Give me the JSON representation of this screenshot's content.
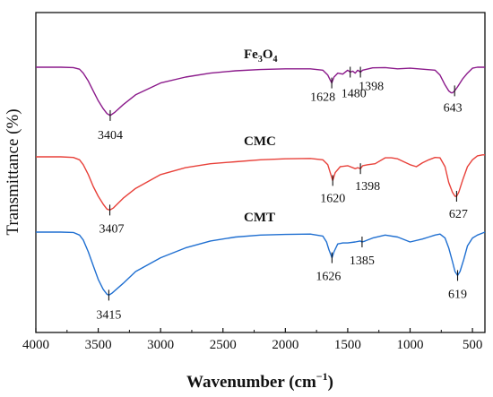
{
  "chart_data": {
    "type": "line",
    "xlabel": "Wavenumber (cm",
    "xlabel_sup": "−1",
    "xlabel_close": ")",
    "ylabel": "Transmittance (%)",
    "xlim": [
      4000,
      400
    ],
    "x_reversed": true,
    "x_ticks": [
      4000,
      3500,
      3000,
      2500,
      2000,
      1500,
      1000,
      500
    ],
    "x_tick_labels": [
      "4000",
      "3500",
      "3000",
      "2500",
      "2000",
      "1500",
      "1000",
      "500"
    ],
    "y_ticks_shown": false,
    "grid": false,
    "legend": "none",
    "series": [
      {
        "name": "Fe3O4",
        "name_main": "Fe",
        "name_sub1": "3",
        "name_mid": "O",
        "name_sub2": "4",
        "color": "#8b1a8b",
        "x": [
          4000,
          3800,
          3700,
          3650,
          3620,
          3580,
          3540,
          3500,
          3460,
          3430,
          3404,
          3370,
          3300,
          3200,
          3000,
          2800,
          2600,
          2400,
          2200,
          2000,
          1800,
          1700,
          1660,
          1640,
          1628,
          1610,
          1580,
          1540,
          1500,
          1480,
          1460,
          1440,
          1420,
          1398,
          1380,
          1300,
          1200,
          1100,
          1000,
          900,
          800,
          760,
          720,
          690,
          670,
          660,
          643,
          620,
          580,
          540,
          500,
          460,
          420,
          400
        ],
        "y": [
          0.0,
          0.0,
          -0.2,
          -1.0,
          -3,
          -7,
          -12,
          -17,
          -21,
          -23.5,
          -24.5,
          -23,
          -19,
          -14,
          -8,
          -5,
          -3,
          -1.8,
          -1.2,
          -0.8,
          -0.8,
          -1.5,
          -4,
          -6.5,
          -8,
          -5,
          -3,
          -3.5,
          -1.5,
          -2.5,
          -2,
          -3,
          -1.5,
          -2.5,
          -1.5,
          -0.3,
          -0.2,
          -0.8,
          -0.5,
          -1.0,
          -1.5,
          -4,
          -9,
          -12,
          -13,
          -13,
          -12,
          -10,
          -6,
          -3,
          -0.5,
          0.0,
          0.0,
          0.0
        ]
      },
      {
        "name": "CMC",
        "color": "#e8413a",
        "x": [
          4000,
          3800,
          3700,
          3650,
          3620,
          3580,
          3540,
          3500,
          3460,
          3430,
          3407,
          3380,
          3300,
          3200,
          3000,
          2800,
          2600,
          2400,
          2200,
          2000,
          1800,
          1700,
          1660,
          1640,
          1620,
          1600,
          1560,
          1500,
          1440,
          1420,
          1398,
          1380,
          1340,
          1280,
          1200,
          1150,
          1100,
          1050,
          1000,
          950,
          900,
          850,
          800,
          760,
          720,
          690,
          660,
          640,
          627,
          610,
          580,
          540,
          500,
          460,
          420,
          400
        ],
        "y": [
          0.0,
          0.0,
          -0.3,
          -1.5,
          -4,
          -9,
          -15,
          -20,
          -24,
          -26.5,
          -27,
          -26,
          -21,
          -16,
          -9,
          -5.5,
          -3.5,
          -2.5,
          -1.5,
          -1.0,
          -0.8,
          -1.5,
          -4,
          -8,
          -12,
          -8,
          -5,
          -4.5,
          -6,
          -5.5,
          -6,
          -4.5,
          -4,
          -3.5,
          -0.5,
          -0.5,
          -1.0,
          -2.5,
          -4,
          -5,
          -3,
          -1.5,
          -0.3,
          -0.5,
          -5,
          -13,
          -18,
          -20,
          -20,
          -18,
          -12,
          -5,
          -1.5,
          0.5,
          1.0,
          1.0
        ]
      },
      {
        "name": "CMT",
        "color": "#1f6fd1",
        "x": [
          4000,
          3800,
          3700,
          3650,
          3620,
          3580,
          3540,
          3500,
          3460,
          3430,
          3415,
          3390,
          3300,
          3200,
          3000,
          2800,
          2600,
          2400,
          2200,
          2000,
          1800,
          1700,
          1670,
          1650,
          1626,
          1610,
          1580,
          1540,
          1500,
          1440,
          1400,
          1385,
          1360,
          1300,
          1200,
          1100,
          1000,
          900,
          850,
          800,
          760,
          720,
          690,
          660,
          640,
          619,
          600,
          570,
          540,
          500,
          460,
          420,
          400
        ],
        "y": [
          0.0,
          0.0,
          -0.2,
          -1.5,
          -4,
          -10,
          -17,
          -24,
          -29,
          -31.5,
          -32,
          -31,
          -26,
          -20,
          -13,
          -8,
          -4.5,
          -2.5,
          -1.5,
          -1.2,
          -1.0,
          -2,
          -5,
          -9,
          -13,
          -10,
          -6,
          -5.5,
          -5.5,
          -5,
          -4.5,
          -5,
          -4.5,
          -3,
          -1.5,
          -2.5,
          -5,
          -3.5,
          -2.5,
          -1.5,
          -1.0,
          -3,
          -8,
          -15,
          -20,
          -22,
          -20,
          -14,
          -7,
          -3,
          -1.5,
          -0.5,
          0.0
        ]
      }
    ],
    "peak_labels": [
      {
        "series": "Fe3O4",
        "x": 3404,
        "text": "3404"
      },
      {
        "series": "Fe3O4",
        "x": 1628,
        "text": "1628"
      },
      {
        "series": "Fe3O4",
        "x": 1480,
        "text": "1480"
      },
      {
        "series": "Fe3O4",
        "x": 1398,
        "text": "1398"
      },
      {
        "series": "Fe3O4",
        "x": 643,
        "text": "643"
      },
      {
        "series": "CMC",
        "x": 3407,
        "text": "3407"
      },
      {
        "series": "CMC",
        "x": 1620,
        "text": "1620"
      },
      {
        "series": "CMC",
        "x": 1398,
        "text": "1398"
      },
      {
        "series": "CMC",
        "x": 627,
        "text": "627"
      },
      {
        "series": "CMT",
        "x": 3415,
        "text": "3415"
      },
      {
        "series": "CMT",
        "x": 1626,
        "text": "1626"
      },
      {
        "series": "CMT",
        "x": 1385,
        "text": "1385"
      },
      {
        "series": "CMT",
        "x": 619,
        "text": "619"
      }
    ]
  }
}
